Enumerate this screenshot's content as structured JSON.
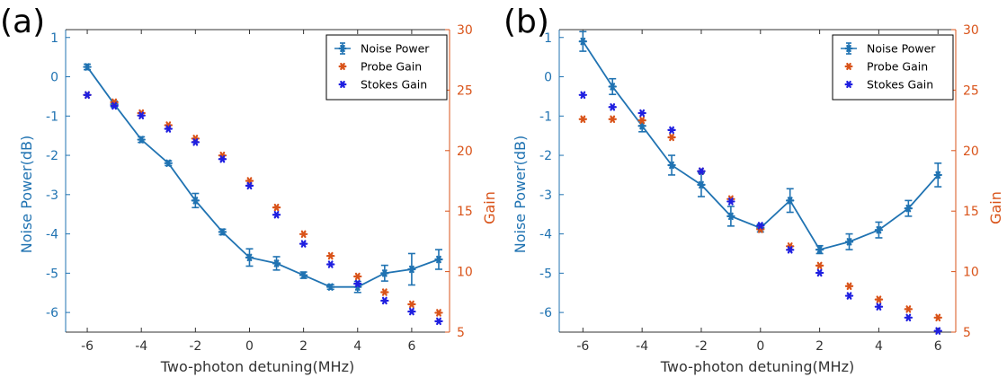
{
  "colors": {
    "noise": "#2073B2",
    "probe": "#D95319",
    "stokes": "#1F1FE0",
    "axis_left": "#2073B2",
    "axis_right": "#D95319",
    "axis_bottom": "#333333"
  },
  "chart_data": [
    {
      "type": "scatter",
      "panel_label": "(a)",
      "xlabel": "Two-photon detuning(MHz)",
      "ylabel": "Noise Power(dB)",
      "y2label": "Gain",
      "xlim": [
        -6.8,
        7.4
      ],
      "ylim": [
        -6.5,
        1.2
      ],
      "y2lim": [
        5,
        30
      ],
      "xticks": [
        -6,
        -4,
        -2,
        0,
        2,
        4,
        6
      ],
      "yticks": [
        -6,
        -5,
        -4,
        -3,
        -2,
        -1,
        0,
        1
      ],
      "y2ticks": [
        5,
        10,
        15,
        20,
        25,
        30
      ],
      "legend": [
        "Noise Power",
        "Probe Gain",
        "Stokes Gain"
      ],
      "legend_position": "top-right",
      "series": [
        {
          "name": "Noise Power",
          "axis": "left",
          "style": "line-errorbar",
          "x": [
            -6,
            -5,
            -4,
            -3,
            -2,
            -1,
            0,
            1,
            2,
            3,
            4,
            5,
            6,
            7
          ],
          "y": [
            0.25,
            -0.7,
            -1.6,
            -2.2,
            -3.15,
            -3.95,
            -4.6,
            -4.75,
            -5.05,
            -5.35,
            -5.35,
            -5.0,
            -4.9,
            -4.65
          ],
          "err": [
            0.07,
            0.08,
            0.07,
            0.06,
            0.18,
            0.07,
            0.22,
            0.17,
            0.08,
            0.06,
            0.14,
            0.2,
            0.4,
            0.25
          ]
        },
        {
          "name": "Probe Gain",
          "axis": "right",
          "style": "marker",
          "x": [
            -6,
            -5,
            -4,
            -3,
            -2,
            -1,
            0,
            1,
            2,
            3,
            4,
            5,
            6,
            7
          ],
          "y": [
            24.6,
            24.0,
            23.1,
            22.1,
            21.0,
            19.6,
            17.5,
            15.3,
            13.1,
            11.3,
            9.6,
            8.3,
            7.3,
            6.6
          ]
        },
        {
          "name": "Stokes Gain",
          "axis": "right",
          "style": "marker",
          "x": [
            -6,
            -5,
            -4,
            -3,
            -2,
            -1,
            0,
            1,
            2,
            3,
            4,
            5,
            6,
            7
          ],
          "y": [
            24.6,
            23.7,
            22.9,
            21.8,
            20.7,
            19.3,
            17.1,
            14.7,
            12.3,
            10.6,
            9.0,
            7.6,
            6.7,
            5.9
          ]
        }
      ]
    },
    {
      "type": "scatter",
      "panel_label": "(b)",
      "xlabel": "Two-photon detuning(MHz)",
      "ylabel": "Noise Power(dB)",
      "y2label": "Gain",
      "xlim": [
        -6.8,
        6.6
      ],
      "ylim": [
        -6.5,
        1.2
      ],
      "y2lim": [
        5,
        30
      ],
      "xticks": [
        -6,
        -4,
        -2,
        0,
        2,
        4,
        6
      ],
      "yticks": [
        -6,
        -5,
        -4,
        -3,
        -2,
        -1,
        0,
        1
      ],
      "y2ticks": [
        5,
        10,
        15,
        20,
        25,
        30
      ],
      "legend": [
        "Noise Power",
        "Probe Gain",
        "Stokes Gain"
      ],
      "legend_position": "top-right",
      "series": [
        {
          "name": "Noise Power",
          "axis": "left",
          "style": "line-errorbar",
          "x": [
            -6,
            -5,
            -4,
            -3,
            -2,
            -1,
            0,
            1,
            2,
            3,
            4,
            5,
            6
          ],
          "y": [
            0.9,
            -0.25,
            -1.25,
            -2.25,
            -2.75,
            -3.55,
            -3.85,
            -3.15,
            -4.4,
            -4.2,
            -3.9,
            -3.35,
            -2.5
          ],
          "err": [
            0.25,
            0.2,
            0.15,
            0.25,
            0.3,
            0.25,
            0.1,
            0.3,
            0.1,
            0.2,
            0.2,
            0.2,
            0.3
          ]
        },
        {
          "name": "Probe Gain",
          "axis": "right",
          "style": "marker",
          "x": [
            -6,
            -5,
            -4,
            -3,
            -2,
            -1,
            0,
            1,
            2,
            3,
            4,
            5,
            6
          ],
          "y": [
            22.6,
            22.6,
            22.5,
            21.1,
            18.3,
            16.0,
            13.5,
            12.1,
            10.5,
            8.8,
            7.7,
            6.9,
            6.2
          ]
        },
        {
          "name": "Stokes Gain",
          "axis": "right",
          "style": "marker",
          "x": [
            -6,
            -5,
            -4,
            -3,
            -2,
            -1,
            0,
            1,
            2,
            3,
            4,
            5,
            6
          ],
          "y": [
            24.6,
            23.6,
            23.1,
            21.7,
            18.3,
            15.8,
            13.8,
            11.8,
            9.9,
            8.0,
            7.1,
            6.2,
            5.1
          ]
        }
      ]
    }
  ]
}
